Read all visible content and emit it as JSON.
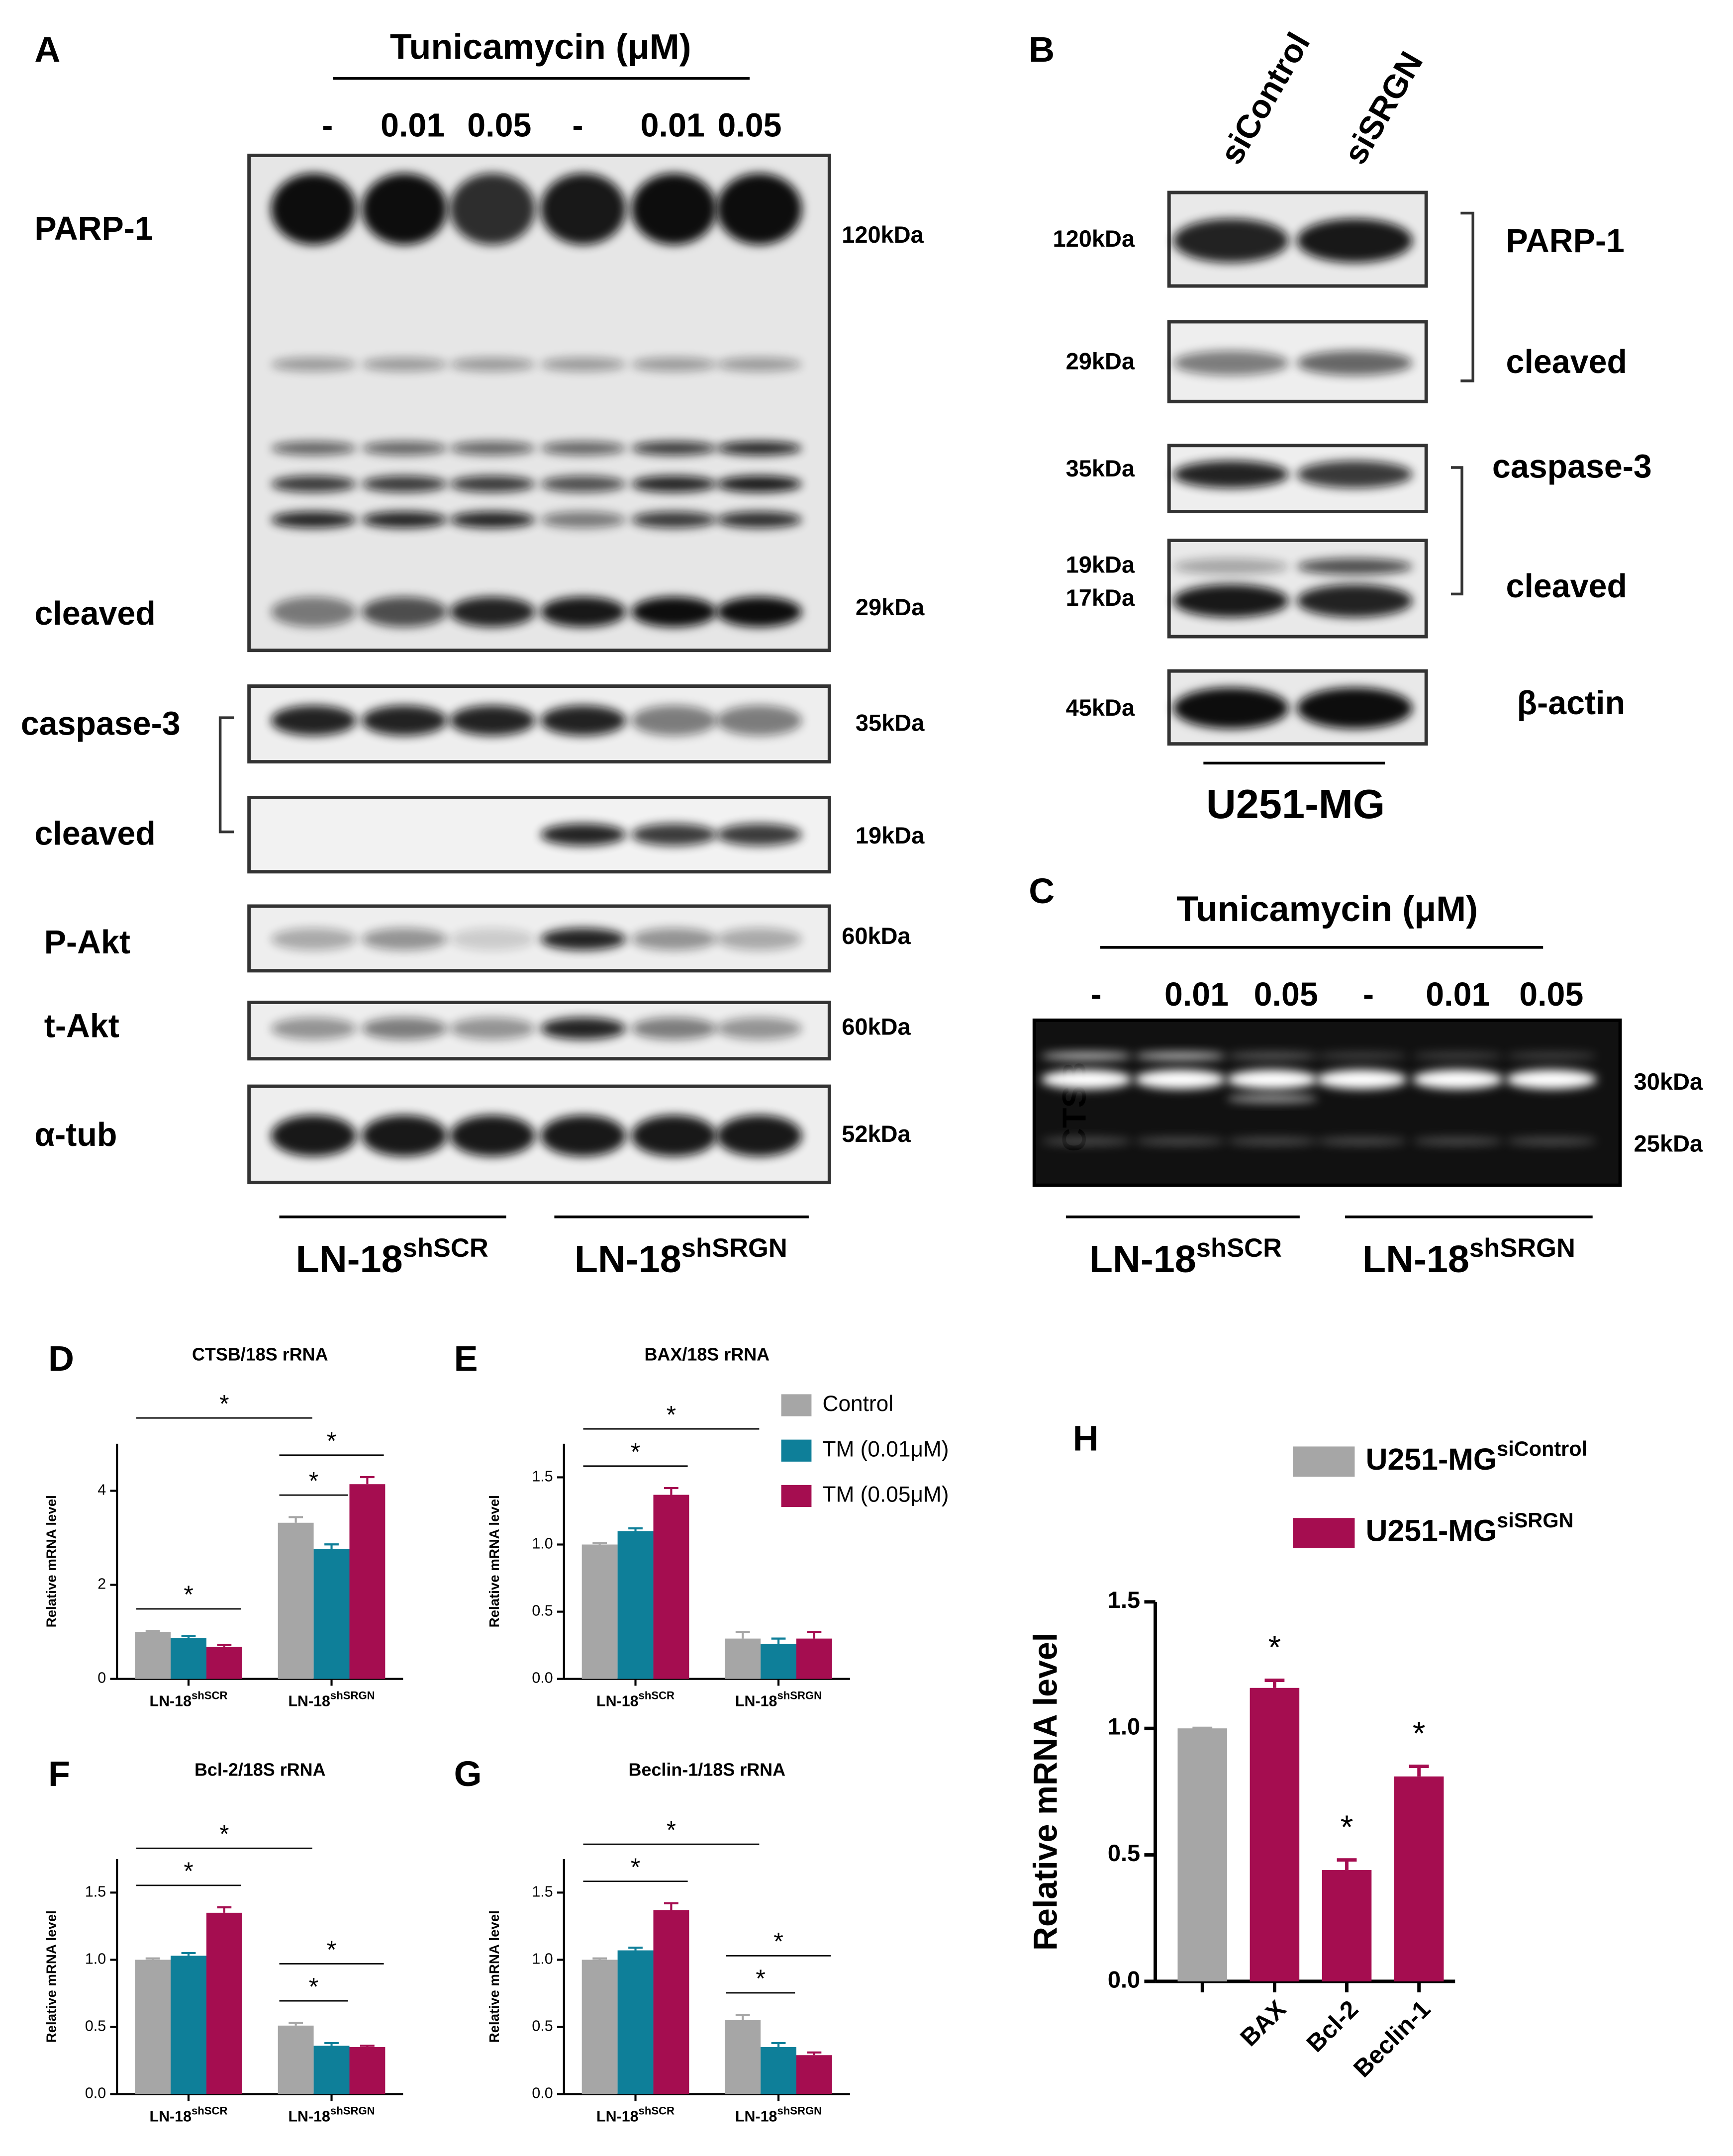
{
  "blots": {
    "A": {
      "panel": "A",
      "treatment": "Tunicamycin (μM)",
      "lanes": [
        "-",
        "0.01",
        "0.05",
        "-",
        "0.01",
        "0.05"
      ],
      "rows": [
        "PARP-1",
        "cleaved",
        "caspase-3",
        "cleaved",
        "P-Akt",
        "t-Akt",
        "α-tub"
      ],
      "sizes": [
        "120kDa",
        "29kDa",
        "35kDa",
        "19kDa",
        "60kDa",
        "60kDa",
        "52kDa"
      ],
      "groups": [
        {
          "text": "LN-18",
          "sup": "shSCR"
        },
        {
          "text": "LN-18",
          "sup": "shSRGN"
        }
      ]
    },
    "B": {
      "panel": "B",
      "lanes": [
        "siControl",
        "siSRGN"
      ],
      "rows": [
        "PARP-1",
        "cleaved",
        "caspase-3",
        "cleaved",
        "β-actin"
      ],
      "sizes": [
        "120kDa",
        "29kDa",
        "35kDa",
        "19kDa",
        "17kDa",
        "45kDa"
      ],
      "group": "U251-MG"
    },
    "C": {
      "panel": "C",
      "treatment": "Tunicamycin (μM)",
      "lanes": [
        "-",
        "0.01",
        "0.05",
        "-",
        "0.01",
        "0.05"
      ],
      "rows": [
        "CTSB"
      ],
      "sizes": [
        "30kDa",
        "25kDa"
      ],
      "groups": [
        {
          "text": "LN-18",
          "sup": "shSCR"
        },
        {
          "text": "LN-18",
          "sup": "shSRGN"
        }
      ]
    }
  },
  "chart_data": [
    {
      "type": "bar",
      "panel": "D",
      "title": "CTSB/18S rRNA",
      "ylabel": "Relative mRNA level",
      "categories": [
        {
          "text": "LN-18",
          "sup": "shSCR"
        },
        {
          "text": "LN-18",
          "sup": "shSRGN"
        }
      ],
      "series": [
        {
          "name": "Control",
          "color": "#a6a6a6",
          "values": [
            1.0,
            3.32
          ],
          "errors": [
            0.02,
            0.12
          ]
        },
        {
          "name": "TM (0.01μM)",
          "color": "#0e7f99",
          "values": [
            0.87,
            2.76
          ],
          "errors": [
            0.04,
            0.1
          ]
        },
        {
          "name": "TM (0.05μM)",
          "color": "#a50d50",
          "values": [
            0.68,
            4.14
          ],
          "errors": [
            0.04,
            0.15
          ]
        }
      ],
      "ylim": [
        0,
        5
      ],
      "yticks": [
        0,
        2,
        4
      ],
      "legend": true,
      "significance": [
        {
          "label": "*",
          "from": [
            0,
            0
          ],
          "to": [
            0,
            2
          ]
        },
        {
          "label": "*",
          "from": [
            1,
            0
          ],
          "to": [
            1,
            1
          ]
        },
        {
          "label": "*",
          "from": [
            1,
            0
          ],
          "to": [
            1,
            2
          ]
        },
        {
          "label": "*",
          "from": [
            0,
            0
          ],
          "to": [
            1,
            0
          ]
        }
      ]
    },
    {
      "type": "bar",
      "panel": "E",
      "title": "BAX/18S rRNA",
      "ylabel": "Relative mRNA level",
      "categories": [
        {
          "text": "LN-18",
          "sup": "shSCR"
        },
        {
          "text": "LN-18",
          "sup": "shSRGN"
        }
      ],
      "series": [
        {
          "color": "#a6a6a6",
          "values": [
            1.0,
            0.3
          ],
          "errors": [
            0.01,
            0.05
          ]
        },
        {
          "color": "#0e7f99",
          "values": [
            1.1,
            0.26
          ],
          "errors": [
            0.02,
            0.04
          ]
        },
        {
          "color": "#a50d50",
          "values": [
            1.37,
            0.3
          ],
          "errors": [
            0.05,
            0.05
          ]
        }
      ],
      "ylim": [
        0,
        1.75
      ],
      "yticks": [
        {
          "value": 0,
          "label": "0.0"
        },
        0.5,
        {
          "value": 1,
          "label": "1.0"
        },
        1.5
      ],
      "significance": [
        {
          "label": "*",
          "from": [
            0,
            0
          ],
          "to": [
            0,
            2
          ]
        },
        {
          "label": "*",
          "from": [
            0,
            0
          ],
          "to": [
            1,
            0
          ]
        }
      ]
    },
    {
      "type": "bar",
      "panel": "F",
      "title": "Bcl-2/18S rRNA",
      "ylabel": "Relative mRNA level",
      "categories": [
        {
          "text": "LN-18",
          "sup": "shSCR"
        },
        {
          "text": "LN-18",
          "sup": "shSRGN"
        }
      ],
      "series": [
        {
          "color": "#a6a6a6",
          "values": [
            1.0,
            0.51
          ],
          "errors": [
            0.01,
            0.02
          ]
        },
        {
          "color": "#0e7f99",
          "values": [
            1.03,
            0.36
          ],
          "errors": [
            0.02,
            0.02
          ]
        },
        {
          "color": "#a50d50",
          "values": [
            1.35,
            0.35
          ],
          "errors": [
            0.04,
            0.01
          ]
        }
      ],
      "ylim": [
        0,
        1.75
      ],
      "yticks": [
        {
          "value": 0,
          "label": "0.0"
        },
        0.5,
        {
          "value": 1,
          "label": "1.0"
        },
        1.5
      ],
      "significance": [
        {
          "label": "*",
          "from": [
            0,
            0
          ],
          "to": [
            0,
            2
          ]
        },
        {
          "label": "*",
          "from": [
            1,
            0
          ],
          "to": [
            1,
            1
          ]
        },
        {
          "label": "*",
          "from": [
            1,
            0
          ],
          "to": [
            1,
            2
          ]
        },
        {
          "label": "*",
          "from": [
            0,
            0
          ],
          "to": [
            1,
            0
          ]
        }
      ]
    },
    {
      "type": "bar",
      "panel": "G",
      "title": "Beclin-1/18S rRNA",
      "ylabel": "Relative mRNA level",
      "categories": [
        {
          "text": "LN-18",
          "sup": "shSCR"
        },
        {
          "text": "LN-18",
          "sup": "shSRGN"
        }
      ],
      "series": [
        {
          "color": "#a6a6a6",
          "values": [
            1.0,
            0.55
          ],
          "errors": [
            0.01,
            0.04
          ]
        },
        {
          "color": "#0e7f99",
          "values": [
            1.07,
            0.35
          ],
          "errors": [
            0.02,
            0.03
          ]
        },
        {
          "color": "#a50d50",
          "values": [
            1.37,
            0.29
          ],
          "errors": [
            0.05,
            0.02
          ]
        }
      ],
      "ylim": [
        0,
        1.75
      ],
      "yticks": [
        {
          "value": 0,
          "label": "0.0"
        },
        0.5,
        {
          "value": 1,
          "label": "1.0"
        },
        1.5
      ],
      "significance": [
        {
          "label": "*",
          "from": [
            0,
            0
          ],
          "to": [
            0,
            2
          ]
        },
        {
          "label": "*",
          "from": [
            1,
            0
          ],
          "to": [
            1,
            1
          ]
        },
        {
          "label": "*",
          "from": [
            1,
            0
          ],
          "to": [
            1,
            2
          ]
        },
        {
          "label": "*",
          "from": [
            0,
            0
          ],
          "to": [
            1,
            0
          ]
        }
      ]
    },
    {
      "type": "bar",
      "panel": "H",
      "ylabel": "Relative mRNA level",
      "categories": [
        null,
        "BAX",
        "Bcl-2",
        "Beclin-1"
      ],
      "series": [
        {
          "name": {
            "text": "U251-MG",
            "sup": "siControl"
          },
          "color": "#a6a6a6",
          "values": [
            1.0,
            null,
            null,
            null
          ],
          "errors": [
            0,
            null,
            null,
            null
          ]
        },
        {
          "name": {
            "text": "U251-MG",
            "sup": "siSRGN"
          },
          "color": "#a50d50",
          "values": [
            null,
            1.16,
            0.44,
            0.81
          ],
          "errors": [
            null,
            0.03,
            0.04,
            0.04
          ]
        }
      ],
      "ylim": [
        0,
        1.5
      ],
      "yticks": [
        {
          "value": 0,
          "label": "0.0"
        },
        0.5,
        {
          "value": 1,
          "label": "1.0"
        },
        1.5
      ],
      "legend": true,
      "significance": [
        {
          "label": "*",
          "at": [
            1,
            1
          ]
        },
        {
          "label": "*",
          "at": [
            2,
            1
          ]
        },
        {
          "label": "*",
          "at": [
            3,
            1
          ]
        }
      ]
    }
  ]
}
